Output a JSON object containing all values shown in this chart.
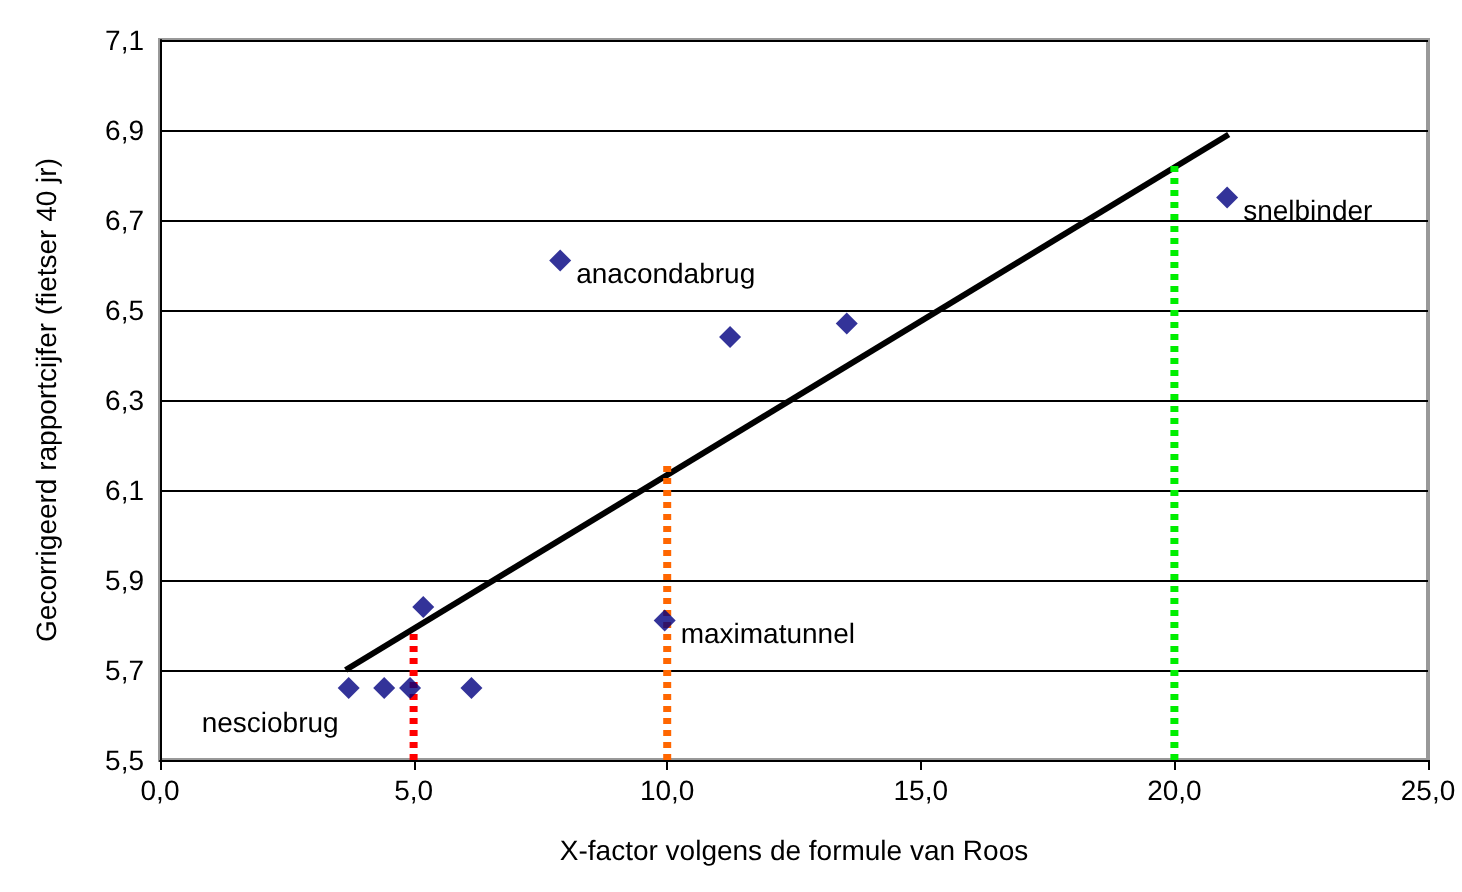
{
  "chart_data": {
    "type": "scatter",
    "xlabel": "X-factor volgens de formule van Roos",
    "ylabel": "Gecorrigeerd rapportcijfer (fietser 40 jr)",
    "marker": "diamond",
    "grid": "y",
    "xlim": [
      0,
      25
    ],
    "ylim": [
      5.5,
      7.1
    ],
    "xticks": [
      {
        "value": 0,
        "label": "0,0"
      },
      {
        "value": 5,
        "label": "5,0"
      },
      {
        "value": 10,
        "label": "10,0"
      },
      {
        "value": 15,
        "label": "15,0"
      },
      {
        "value": 20,
        "label": "20,0"
      },
      {
        "value": 25,
        "label": "25,0"
      }
    ],
    "yticks": [
      {
        "value": 5.5,
        "label": "5,5"
      },
      {
        "value": 5.7,
        "label": "5,7"
      },
      {
        "value": 5.9,
        "label": "5,9"
      },
      {
        "value": 6.1,
        "label": "6,1"
      },
      {
        "value": 6.3,
        "label": "6,3"
      },
      {
        "value": 6.5,
        "label": "6,5"
      },
      {
        "value": 6.7,
        "label": "6,7"
      },
      {
        "value": 6.9,
        "label": "6,9"
      },
      {
        "value": 7.1,
        "label": "7,1"
      }
    ],
    "series": [
      {
        "color": "#000080",
        "x": [
          3.72,
          4.42,
          4.93,
          6.14,
          5.19,
          7.89,
          9.95,
          11.24,
          13.54,
          21.04
        ],
        "values": [
          5.66,
          5.66,
          5.66,
          5.66,
          5.84,
          6.61,
          5.81,
          6.44,
          6.47,
          6.75
        ]
      },
      {
        "type": "line",
        "color": "#000000",
        "line_style": "solid",
        "marker": "none",
        "x": [
          3.66,
          21.07
        ],
        "values": [
          5.7,
          6.89
        ]
      },
      {
        "type": "line",
        "color": "#ff0000",
        "line_style": "dotted",
        "marker": "none",
        "x": [
          5,
          5
        ],
        "values": [
          5.5,
          5.79
        ]
      },
      {
        "type": "line",
        "color": "#ff6600",
        "line_style": "dotted",
        "marker": "none",
        "x": [
          10,
          10
        ],
        "values": [
          5.5,
          6.16
        ]
      },
      {
        "type": "line",
        "color": "#00ee00",
        "line_style": "dotted",
        "marker": "none",
        "x": [
          20,
          20
        ],
        "values": [
          5.5,
          6.83
        ]
      }
    ],
    "annotations": [
      {
        "text": "nesciobrug",
        "x": 3.72,
        "y": 5.66
      },
      {
        "text": "anacondabrug",
        "x": 7.89,
        "y": 6.61
      },
      {
        "text": "maximatunnel",
        "x": 9.95,
        "y": 5.81
      },
      {
        "text": "snelbinder",
        "x": 21.04,
        "y": 6.75
      }
    ]
  }
}
